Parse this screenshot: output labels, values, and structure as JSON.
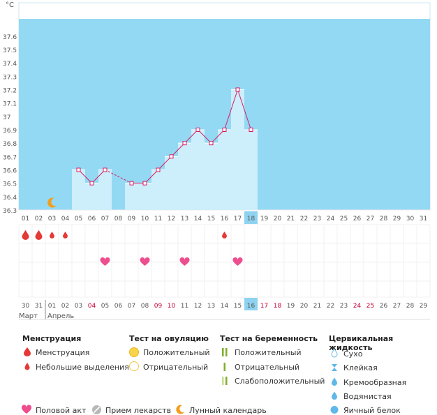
{
  "chart_data": {
    "type": "bar",
    "unit": "°C",
    "ylim": [
      36.3,
      37.65
    ],
    "y_ticks": [
      "36.3",
      "36.4",
      "36.5",
      "36.6",
      "36.7",
      "36.8",
      "36.9",
      "37",
      "37.1",
      "37.2",
      "37.3",
      "37.4",
      "37.5",
      "37.6"
    ],
    "cycle_days": [
      "01",
      "02",
      "03",
      "04",
      "05",
      "06",
      "07",
      "08",
      "09",
      "10",
      "11",
      "12",
      "13",
      "14",
      "15",
      "16",
      "17",
      "18",
      "19",
      "20",
      "21",
      "22",
      "23",
      "24",
      "25",
      "26",
      "27",
      "28",
      "29",
      "30",
      "31"
    ],
    "today_cycle_day": "18",
    "temperatures": [
      null,
      null,
      null,
      null,
      36.6,
      36.5,
      36.6,
      null,
      36.5,
      36.5,
      36.6,
      36.7,
      36.8,
      36.9,
      36.8,
      36.9,
      37.2,
      36.9,
      null,
      null,
      null,
      null,
      null,
      null,
      null,
      null,
      null,
      null,
      null,
      null,
      null
    ],
    "dates": [
      "30",
      "31",
      "01",
      "02",
      "03",
      "04",
      "05",
      "06",
      "07",
      "08",
      "09",
      "10",
      "11",
      "12",
      "13",
      "14",
      "15",
      "16",
      "17",
      "18",
      "19",
      "20",
      "21",
      "22",
      "23",
      "24",
      "25",
      "26",
      "27",
      "28",
      "29"
    ],
    "weekend_date_indices": [
      5,
      10,
      11,
      18,
      19,
      25,
      26
    ],
    "today_date": "16",
    "months": [
      "Март",
      "Апрель"
    ],
    "menstruation": {
      "heavy_days": [
        0,
        1
      ],
      "light_days": [
        2,
        3,
        15
      ]
    },
    "intercourse_days": [
      6,
      9,
      12,
      16
    ],
    "moon_day": 2
  },
  "legend": {
    "menstruation": {
      "title": "Менструация",
      "items": [
        "Менструация",
        "Небольшие выделения"
      ]
    },
    "ovulation": {
      "title": "Тест на овуляцию",
      "items": [
        "Положительный",
        "Отрицательный"
      ]
    },
    "pregnancy": {
      "title": "Тест на беременность",
      "items": [
        "Положительный",
        "Отрицательный",
        "Слабоположительный"
      ]
    },
    "cervical": {
      "title": "Цервикальная жидкость",
      "items": [
        "Сухо",
        "Клейкая",
        "Кремообразная",
        "Водянистая",
        "Яичный белок"
      ]
    },
    "bottom": [
      "Половой акт",
      "Прием лекарств",
      "Лунный календарь"
    ]
  },
  "colors": {
    "plot_bg": "#93d9f4",
    "bar_fill": "#cdeefb",
    "line": "#d81b60",
    "menstruation": "#e53935",
    "heart": "#ee4d8e",
    "today": "#8fd3f0",
    "weekend": "#cc0033",
    "ovulation_pos": "#f9d34a",
    "pregnancy_green": "#7fae2c",
    "moon": "#f29f1d",
    "pill": "#b8b8b8",
    "cervical": "#5fb8e8"
  }
}
